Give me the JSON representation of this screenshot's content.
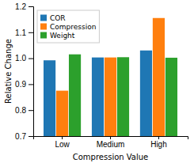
{
  "chart_data": {
    "type": "bar",
    "categories": [
      "Low",
      "Medium",
      "High"
    ],
    "series": [
      {
        "name": "COR",
        "values": [
          0.992,
          1.003,
          1.03
        ]
      },
      {
        "name": "Compression",
        "values": [
          0.875,
          1.003,
          1.155
        ]
      },
      {
        "name": "Weight",
        "values": [
          1.015,
          1.004,
          1.002
        ]
      }
    ],
    "xlabel": "Compression Value",
    "ylabel": "Relative Change",
    "ylim": [
      0.7,
      1.2
    ],
    "yticks": [
      0.7,
      0.8,
      0.9,
      {
        "value": 1.0,
        "label": "1.0"
      },
      1.1,
      1.2
    ],
    "grid": false,
    "legend": "upper left"
  }
}
